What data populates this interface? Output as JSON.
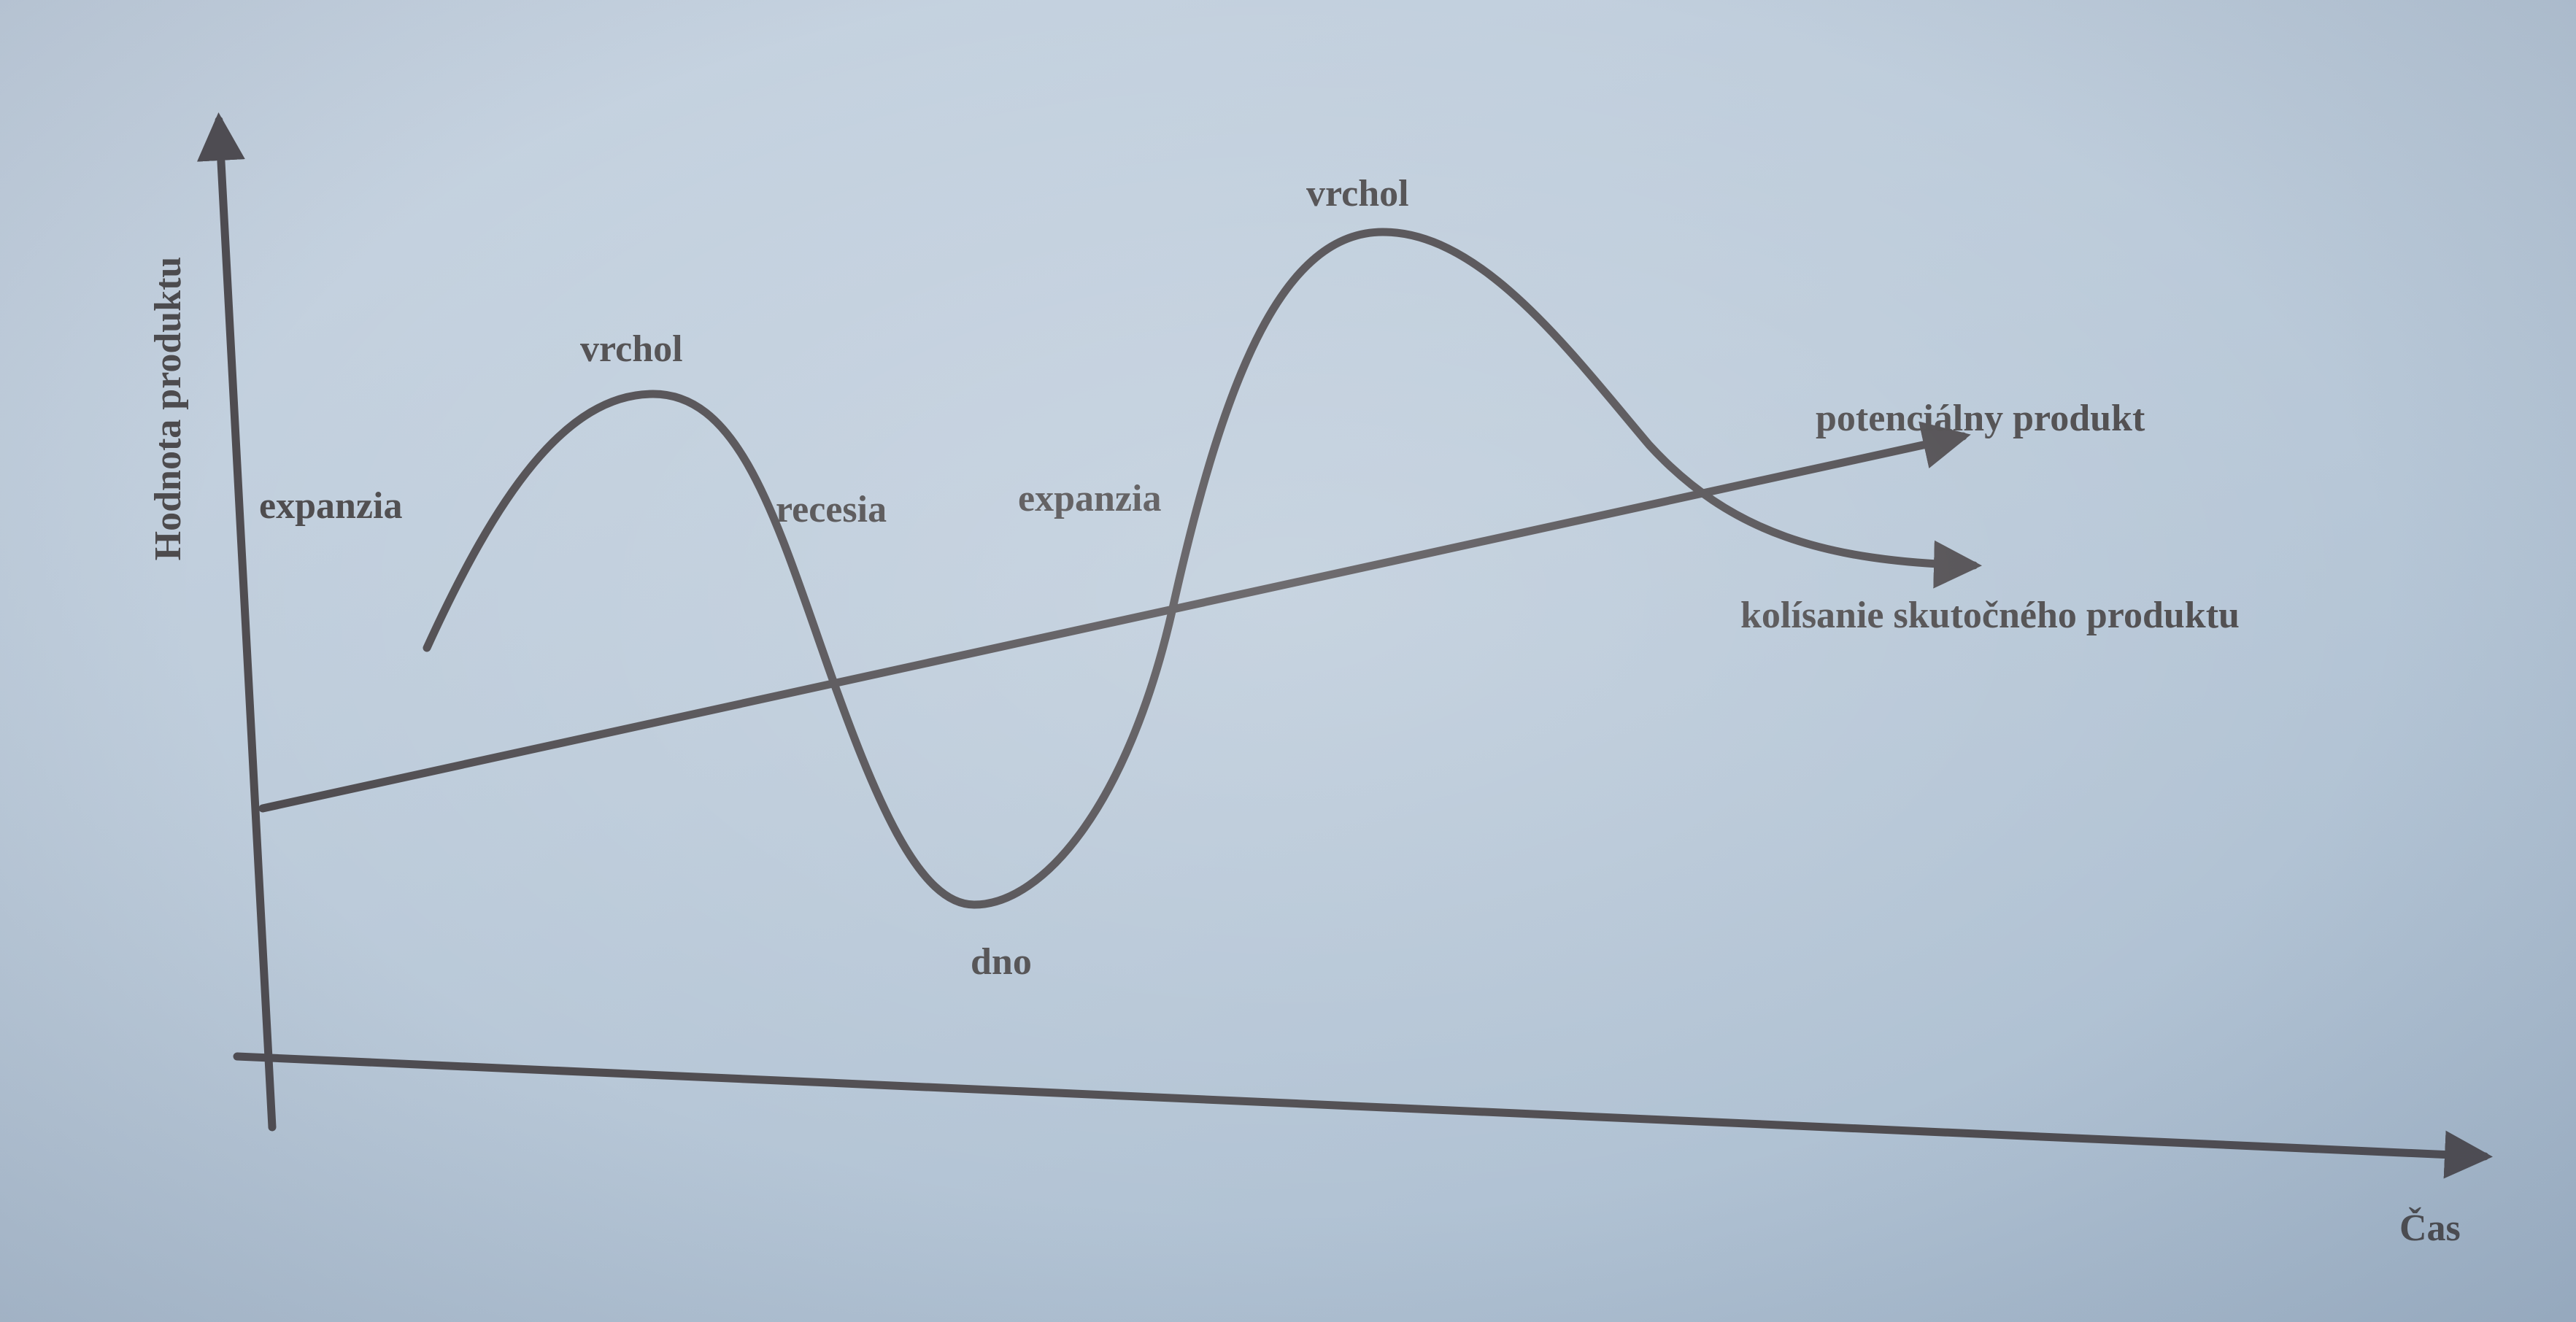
{
  "diagram": {
    "y_axis_label": "Hodnota produktu",
    "x_axis_label": "Čas",
    "labels": {
      "expansion_1": "expanzia",
      "peak_1": "vrchol",
      "recession": "recesia",
      "trough": "dno",
      "expansion_2": "expanzia",
      "peak_2": "vrchol",
      "trend_line": "potenciálny produkt",
      "cycle_line": "kolísanie skutočného produktu"
    },
    "colors": {
      "background": "#bccbda",
      "ink": "#4f4c50"
    }
  }
}
